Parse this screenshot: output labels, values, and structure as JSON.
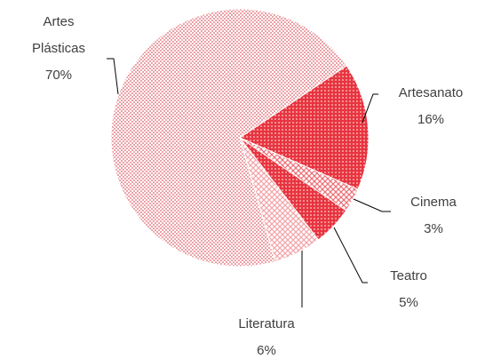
{
  "chart_data": {
    "type": "pie",
    "categories": [
      "Artesanato",
      "Cinema",
      "Teatro",
      "Literatura",
      "Artes Plásticas"
    ],
    "values": [
      16,
      3,
      5,
      6,
      70
    ],
    "value_labels": [
      "16%",
      "3%",
      "5%",
      "6%",
      "70%"
    ],
    "colors": [
      "#e8343f",
      "#ee6e76",
      "#e8343f",
      "#f3a3a8",
      "#eea2a8"
    ]
  }
}
